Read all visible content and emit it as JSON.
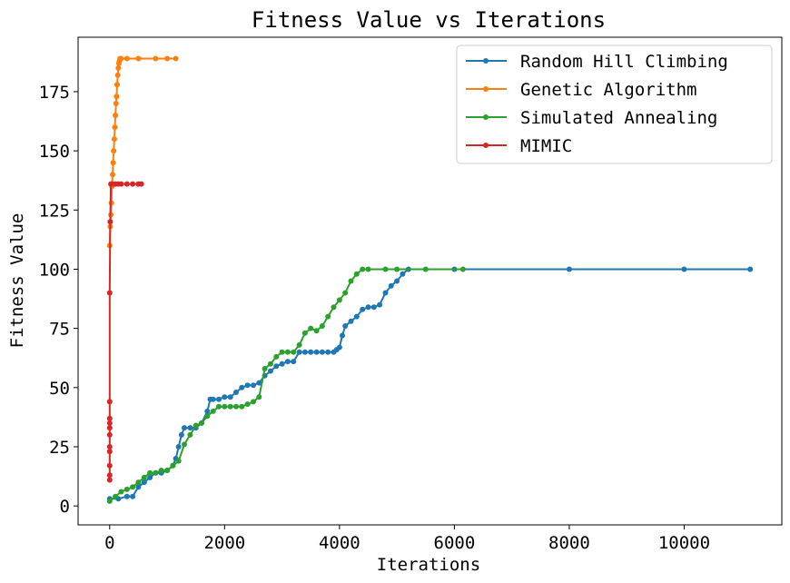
{
  "chart_data": {
    "type": "line",
    "title": "Fitness Value vs Iterations",
    "xlabel": "Iterations",
    "ylabel": "Fitness Value",
    "xlim": [
      -550,
      11700
    ],
    "ylim": [
      -8,
      198
    ],
    "xticks": [
      0,
      2000,
      4000,
      6000,
      8000,
      10000
    ],
    "yticks": [
      0,
      25,
      50,
      75,
      100,
      125,
      150,
      175
    ],
    "grid": false,
    "legend_position": "top-right",
    "series": [
      {
        "name": "Random Hill Climbing",
        "color": "#1f77b4",
        "x": [
          0,
          150,
          300,
          400,
          500,
          600,
          700,
          800,
          900,
          1000,
          1100,
          1150,
          1200,
          1250,
          1300,
          1400,
          1500,
          1600,
          1700,
          1750,
          1800,
          1900,
          2000,
          2100,
          2200,
          2300,
          2400,
          2500,
          2600,
          2700,
          2800,
          2900,
          3000,
          3100,
          3200,
          3300,
          3400,
          3500,
          3600,
          3700,
          3800,
          3900,
          3950,
          4000,
          4050,
          4100,
          4200,
          4300,
          4400,
          4500,
          4600,
          4700,
          4800,
          4900,
          5000,
          5100,
          5200,
          6000,
          8000,
          10000,
          11150
        ],
        "y": [
          3,
          3,
          4,
          4,
          8,
          10,
          12,
          14,
          14,
          15,
          17,
          20,
          25,
          30,
          33,
          33,
          33,
          35,
          40,
          45,
          45,
          45,
          46,
          46,
          48,
          50,
          51,
          51,
          52,
          55,
          57,
          59,
          60,
          61,
          61,
          65,
          65,
          65,
          65,
          65,
          65,
          65,
          66,
          67,
          72,
          76,
          78,
          80,
          83,
          84,
          84,
          85,
          90,
          93,
          95,
          98,
          100,
          100,
          100,
          100,
          100
        ]
      },
      {
        "name": "Genetic Algorithm",
        "color": "#ff7f0e",
        "x": [
          0,
          10,
          20,
          30,
          40,
          50,
          60,
          70,
          80,
          90,
          100,
          110,
          120,
          130,
          140,
          150,
          160,
          170,
          180,
          200,
          300,
          500,
          800,
          1000,
          1150
        ],
        "y": [
          110,
          118,
          123,
          128,
          135,
          140,
          145,
          150,
          155,
          160,
          165,
          170,
          173,
          178,
          182,
          185,
          187,
          188,
          189,
          189,
          189,
          189,
          189,
          189,
          189
        ]
      },
      {
        "name": "Simulated Annealing",
        "color": "#2ca02c",
        "x": [
          0,
          100,
          200,
          300,
          400,
          500,
          600,
          700,
          800,
          900,
          1000,
          1100,
          1200,
          1300,
          1400,
          1500,
          1600,
          1700,
          1800,
          1900,
          2000,
          2100,
          2200,
          2300,
          2400,
          2500,
          2600,
          2700,
          2800,
          2900,
          3000,
          3100,
          3200,
          3300,
          3400,
          3500,
          3600,
          3700,
          3800,
          3900,
          4000,
          4100,
          4200,
          4300,
          4400,
          4500,
          4800,
          5000,
          5500,
          6150
        ],
        "y": [
          2,
          4,
          6,
          7,
          8,
          10,
          12,
          14,
          14,
          15,
          15,
          17,
          19,
          26,
          30,
          34,
          35,
          38,
          40,
          42,
          42,
          42,
          42,
          42,
          43,
          44,
          46,
          58,
          60,
          63,
          65,
          65,
          65,
          68,
          73,
          75,
          74,
          76,
          80,
          84,
          87,
          90,
          95,
          98,
          100,
          100,
          100,
          100,
          100,
          100
        ]
      },
      {
        "name": "MIMIC",
        "color": "#d62728",
        "x": [
          0,
          0,
          0,
          0,
          0,
          0,
          0,
          0,
          0,
          0,
          0,
          10,
          20,
          50,
          100,
          150,
          200,
          300,
          400,
          500,
          550
        ],
        "y": [
          11,
          13,
          17,
          23,
          25,
          30,
          33,
          35,
          37,
          44,
          90,
          120,
          136,
          136,
          136,
          136,
          136,
          136,
          136,
          136,
          136
        ]
      }
    ]
  }
}
